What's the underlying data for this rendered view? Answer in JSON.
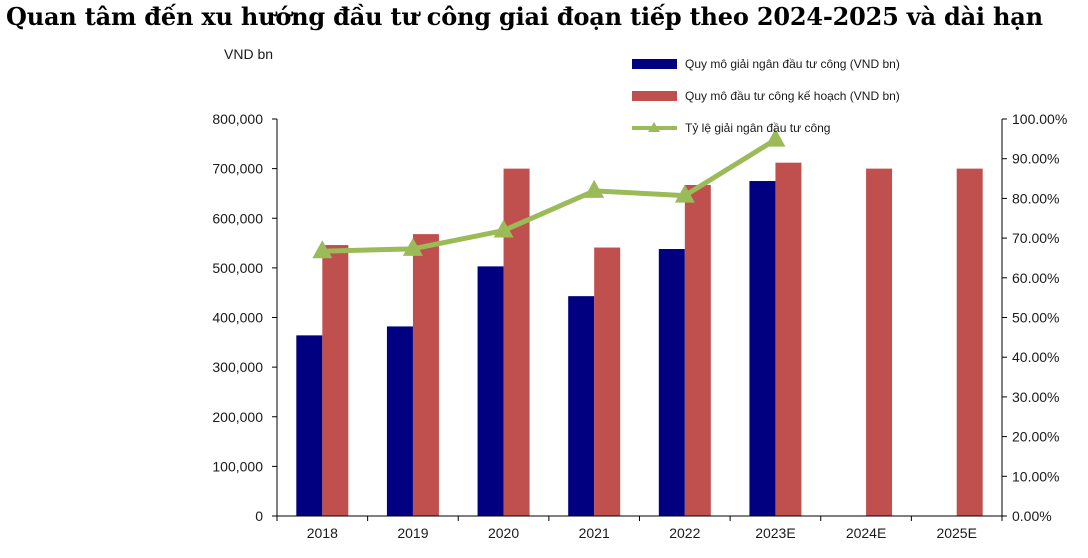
{
  "chart_data": {
    "type": "bar",
    "title": "Quan tâm đến xu hướng đầu tư công giai đoạn tiếp theo 2024-2025 và dài hạn",
    "ylabel": "VND bn",
    "categories": [
      "2018",
      "2019",
      "2020",
      "2021",
      "2022",
      "2023E",
      "2024E",
      "2025E"
    ],
    "ylim": [
      0,
      800000
    ],
    "y2lim": [
      0,
      100
    ],
    "y_ticks": [
      "0",
      "100,000",
      "200,000",
      "300,000",
      "400,000",
      "500,000",
      "600,000",
      "700,000",
      "800,000"
    ],
    "y2_ticks": [
      "0.00%",
      "10.00%",
      "20.00%",
      "30.00%",
      "40.00%",
      "50.00%",
      "60.00%",
      "70.00%",
      "80.00%",
      "90.00%",
      "100.00%"
    ],
    "series": [
      {
        "name": "Quy mô giải ngân đầu tư công (VND bn)",
        "kind": "bar",
        "color": "#000080",
        "values": [
          364000,
          382000,
          503000,
          443000,
          538000,
          675000,
          null,
          null
        ]
      },
      {
        "name": "Quy mô đầu tư công kế hoạch (VND bn)",
        "kind": "bar",
        "color": "#C0504D",
        "values": [
          546000,
          568000,
          700000,
          541000,
          667000,
          712000,
          700000,
          700000
        ]
      },
      {
        "name": "Tỷ lệ giải ngân đầu tư công",
        "kind": "line",
        "axis": "right",
        "color": "#9BBB59",
        "values": [
          66.7,
          67.3,
          71.9,
          81.9,
          80.7,
          94.8,
          null,
          null
        ]
      }
    ],
    "legend_position": "top-right"
  }
}
